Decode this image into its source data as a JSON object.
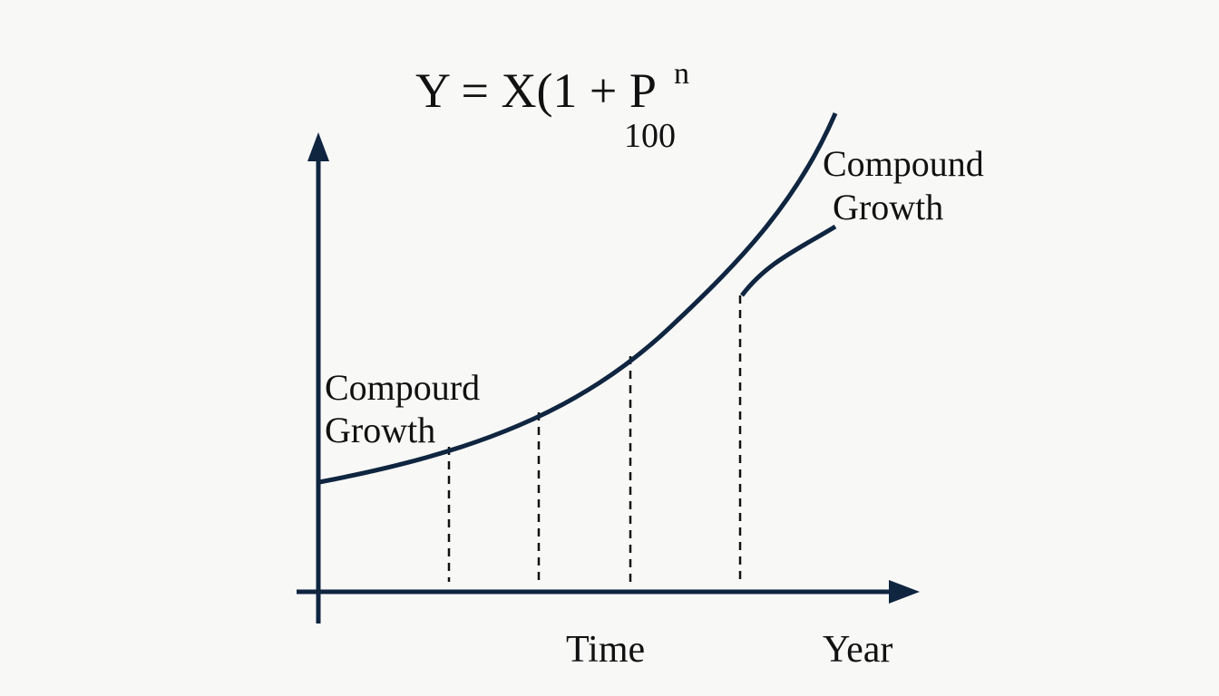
{
  "formula": {
    "main": "Y = X(1 + P",
    "exponent": "n",
    "denominator": "100"
  },
  "labels": [
    {
      "lines": [
        "Compound",
        "Growth"
      ]
    },
    {
      "lines": [
        "Compourd",
        "Growth"
      ]
    }
  ],
  "axis_labels": {
    "time": "Time",
    "year": "Year"
  }
}
